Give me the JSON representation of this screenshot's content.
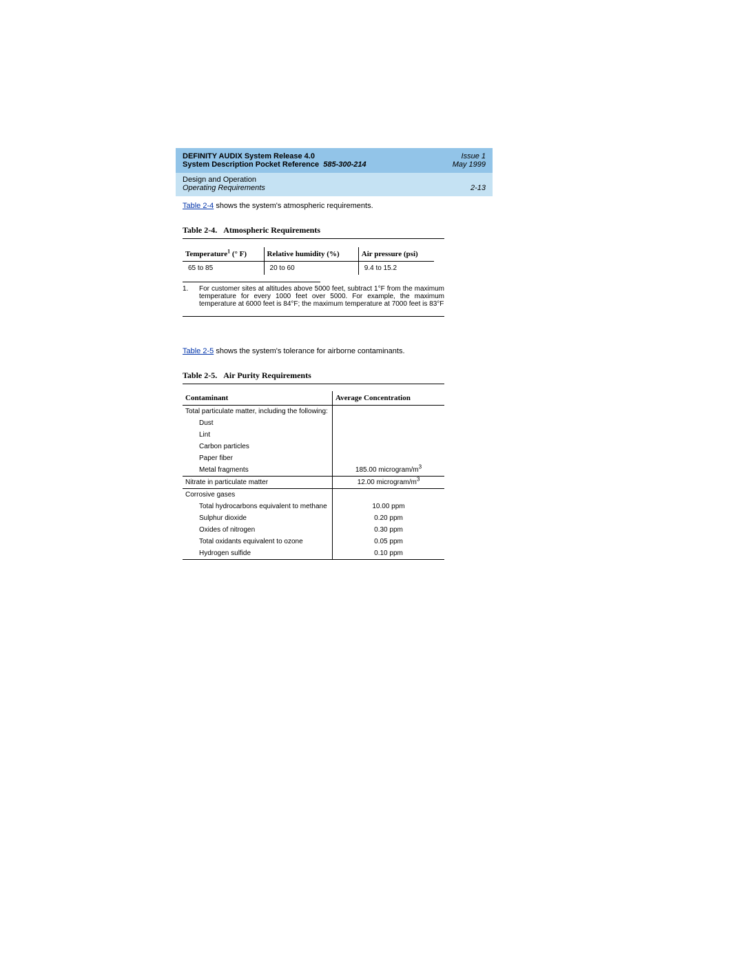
{
  "header": {
    "product": "DEFINITY AUDIX System Release 4.0",
    "doctitle": "System Description Pocket Reference",
    "docnum": "585-300-214",
    "issue": "Issue 1",
    "date": "May 1999",
    "chapter": "Design and Operation",
    "section": "Operating Requirements",
    "pageno": "2-13"
  },
  "para1": {
    "xref": "Table 2-4",
    "rest": " shows the system's atmospheric requirements."
  },
  "table24": {
    "caption_label": "Table 2-4.",
    "caption_title": "Atmospheric Requirements",
    "col1_label_pre": "Temperature",
    "col1_label_sup": "1",
    "col1_label_post": " (° F)",
    "col2_label": "Relative humidity (%)",
    "col3_label": "Air pressure (psi)",
    "row": {
      "c1": "65 to 85",
      "c2": "20 to 60",
      "c3": "9.4 to 15.2"
    }
  },
  "footnote1": {
    "num": "1.",
    "text": "For customer sites at altitudes above 5000 feet, subtract 1°F from the maximum temperature for every 1000 feet over 5000. For example, the maximum temperature at 6000 feet is 84°F; the maximum temperature at 7000 feet is 83°F"
  },
  "para2": {
    "xref": "Table 2-5",
    "rest": " shows the system's tolerance for airborne contaminants."
  },
  "table25": {
    "caption_label": "Table 2-5.",
    "caption_title": "Air Purity Requirements",
    "col1_label": "Contaminant",
    "col2_label": "Average Concentration",
    "rows": [
      {
        "c1": "Total particulate matter, including the following:",
        "c2": "",
        "indent": 0,
        "rule": 0
      },
      {
        "c1": "Dust",
        "c2": "",
        "indent": 1,
        "rule": 0
      },
      {
        "c1": "Lint",
        "c2": "",
        "indent": 1,
        "rule": 0
      },
      {
        "c1": "Carbon particles",
        "c2": "",
        "indent": 1,
        "rule": 0
      },
      {
        "c1": "Paper fiber",
        "c2": "",
        "indent": 1,
        "rule": 0
      },
      {
        "c1": "Metal fragments",
        "c2": "185.00 microgram/m",
        "sup": "3",
        "indent": 1,
        "rule": 1
      },
      {
        "c1": "Nitrate in particulate matter",
        "c2": "12.00 microgram/m",
        "sup": "3",
        "indent": 0,
        "rule": 1
      },
      {
        "c1": "Corrosive gases",
        "c2": "",
        "indent": 0,
        "rule": 0
      },
      {
        "c1": "Total hydrocarbons equivalent to methane",
        "c2": "10.00 ppm",
        "indent": 1,
        "rule": 0
      },
      {
        "c1": "Sulphur dioxide",
        "c2": "0.20 ppm",
        "indent": 1,
        "rule": 0
      },
      {
        "c1": "Oxides of nitrogen",
        "c2": "0.30 ppm",
        "indent": 1,
        "rule": 0
      },
      {
        "c1": "Total oxidants equivalent to ozone",
        "c2": "0.05 ppm",
        "indent": 1,
        "rule": 0
      },
      {
        "c1": "Hydrogen sulfide",
        "c2": "0.10 ppm",
        "indent": 1,
        "rule": 2
      }
    ]
  }
}
